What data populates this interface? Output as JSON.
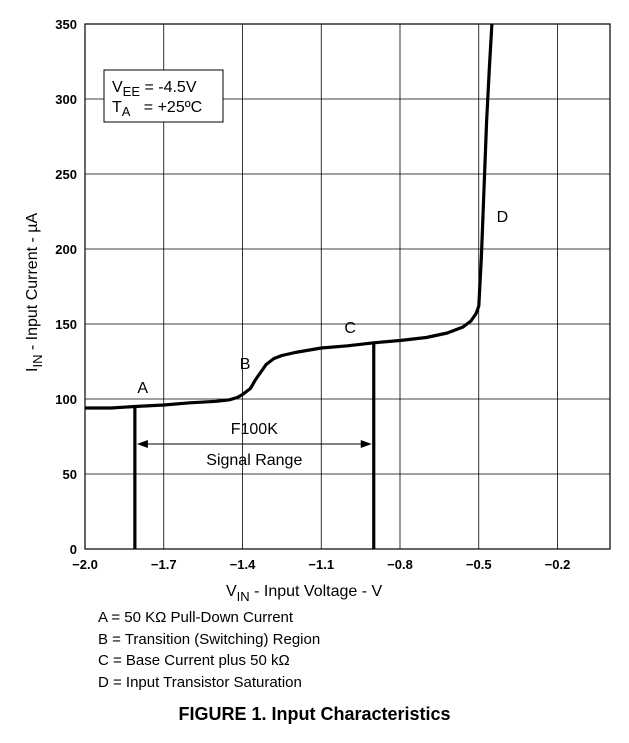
{
  "chart_data": {
    "type": "line",
    "xlabel": {
      "main": "V",
      "sub": "IN",
      "rest": " - Input Voltage - V"
    },
    "ylabel": {
      "main": "I",
      "sub": "IN",
      "rest": " - Input Current - µA"
    },
    "xlim": [
      -2.0,
      -0.0
    ],
    "ylim": [
      0,
      350
    ],
    "x_ticks": [
      -2.0,
      -1.7,
      -1.4,
      -1.1,
      -0.8,
      -0.5,
      -0.2
    ],
    "x_tick_labels": [
      "−2.0",
      "−1.7",
      "−1.4",
      "−1.1",
      "−0.8",
      "−0.5",
      "−0.2"
    ],
    "y_ticks": [
      0,
      50,
      100,
      150,
      200,
      250,
      300,
      350
    ],
    "y_tick_labels": [
      "0",
      "50",
      "100",
      "150",
      "200",
      "250",
      "300",
      "350"
    ],
    "grid": true,
    "series": [
      {
        "x": [
          -2.0,
          -1.9,
          -1.81,
          -1.7,
          -1.6,
          -1.5,
          -1.45,
          -1.42,
          -1.4,
          -1.37,
          -1.35,
          -1.33,
          -1.31,
          -1.28,
          -1.25,
          -1.2,
          -1.1,
          -1.0,
          -0.9,
          -0.8,
          -0.7,
          -0.62,
          -0.56,
          -0.53,
          -0.51,
          -0.5,
          -0.49,
          -0.48,
          -0.47,
          -0.46,
          -0.45
        ],
        "y": [
          94,
          94,
          95,
          96,
          97.5,
          98.5,
          99.5,
          101,
          103,
          107,
          113,
          118,
          123,
          127,
          129,
          131,
          134,
          135.5,
          137.5,
          139,
          141,
          144,
          148,
          152,
          157,
          162,
          195,
          240,
          285,
          320,
          350
        ]
      }
    ],
    "vlines": [
      {
        "x": -1.81,
        "y_top": 95
      },
      {
        "x": -0.9,
        "y_top": 137.5
      }
    ],
    "range_arrow": {
      "x_from": -1.81,
      "x_to": -0.9,
      "y": 70,
      "label_top": "F100K",
      "label_bottom": "Signal Range"
    },
    "point_labels": [
      {
        "text": "A",
        "x": -1.78,
        "y": 104
      },
      {
        "text": "B",
        "x": -1.39,
        "y": 120
      },
      {
        "text": "C",
        "x": -0.99,
        "y": 144
      },
      {
        "text": "D",
        "x": -0.41,
        "y": 218
      }
    ],
    "conditions": [
      {
        "main": "V",
        "sub": "EE",
        "value": " = -4.5V"
      },
      {
        "main": "T",
        "sub": "A",
        "value": "   = +25ºC"
      }
    ]
  },
  "legend": [
    "A = 50 KΩ Pull-Down Current",
    "B = Transition (Switching) Region",
    "C = Base Current plus 50 kΩ",
    "D = Input Transistor Saturation"
  ],
  "caption": "FIGURE 1. Input Characteristics"
}
